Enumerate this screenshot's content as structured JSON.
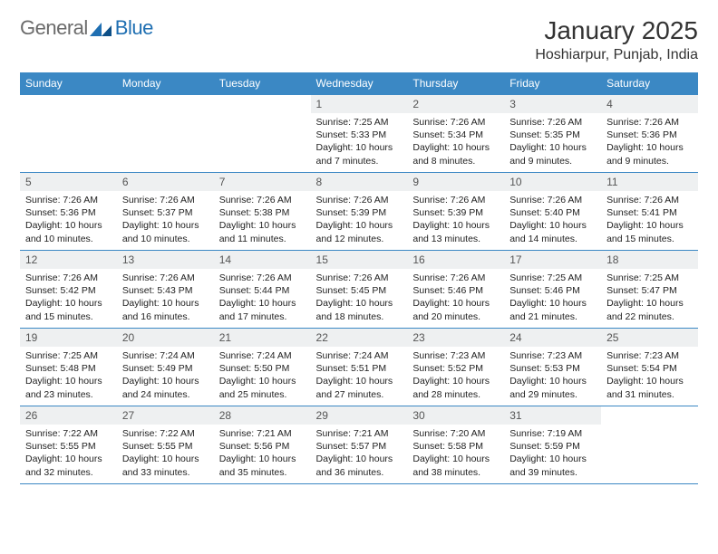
{
  "brand": {
    "name1": "General",
    "name2": "Blue"
  },
  "title": "January 2025",
  "location": "Hoshiarpur, Punjab, India",
  "colors": {
    "header_bg": "#3b88c4",
    "header_text": "#ffffff",
    "daynum_bg": "#eef0f1",
    "border": "#3b88c4",
    "logo_gray": "#6b6b6b",
    "logo_blue": "#1f6fb2"
  },
  "day_names": [
    "Sunday",
    "Monday",
    "Tuesday",
    "Wednesday",
    "Thursday",
    "Friday",
    "Saturday"
  ],
  "weeks": [
    [
      {
        "n": "",
        "sr": "",
        "ss": "",
        "dl": "",
        "empty": true
      },
      {
        "n": "",
        "sr": "",
        "ss": "",
        "dl": "",
        "empty": true
      },
      {
        "n": "",
        "sr": "",
        "ss": "",
        "dl": "",
        "empty": true
      },
      {
        "n": "1",
        "sr": "7:25 AM",
        "ss": "5:33 PM",
        "dl": "10 hours and 7 minutes."
      },
      {
        "n": "2",
        "sr": "7:26 AM",
        "ss": "5:34 PM",
        "dl": "10 hours and 8 minutes."
      },
      {
        "n": "3",
        "sr": "7:26 AM",
        "ss": "5:35 PM",
        "dl": "10 hours and 9 minutes."
      },
      {
        "n": "4",
        "sr": "7:26 AM",
        "ss": "5:36 PM",
        "dl": "10 hours and 9 minutes."
      }
    ],
    [
      {
        "n": "5",
        "sr": "7:26 AM",
        "ss": "5:36 PM",
        "dl": "10 hours and 10 minutes."
      },
      {
        "n": "6",
        "sr": "7:26 AM",
        "ss": "5:37 PM",
        "dl": "10 hours and 10 minutes."
      },
      {
        "n": "7",
        "sr": "7:26 AM",
        "ss": "5:38 PM",
        "dl": "10 hours and 11 minutes."
      },
      {
        "n": "8",
        "sr": "7:26 AM",
        "ss": "5:39 PM",
        "dl": "10 hours and 12 minutes."
      },
      {
        "n": "9",
        "sr": "7:26 AM",
        "ss": "5:39 PM",
        "dl": "10 hours and 13 minutes."
      },
      {
        "n": "10",
        "sr": "7:26 AM",
        "ss": "5:40 PM",
        "dl": "10 hours and 14 minutes."
      },
      {
        "n": "11",
        "sr": "7:26 AM",
        "ss": "5:41 PM",
        "dl": "10 hours and 15 minutes."
      }
    ],
    [
      {
        "n": "12",
        "sr": "7:26 AM",
        "ss": "5:42 PM",
        "dl": "10 hours and 15 minutes."
      },
      {
        "n": "13",
        "sr": "7:26 AM",
        "ss": "5:43 PM",
        "dl": "10 hours and 16 minutes."
      },
      {
        "n": "14",
        "sr": "7:26 AM",
        "ss": "5:44 PM",
        "dl": "10 hours and 17 minutes."
      },
      {
        "n": "15",
        "sr": "7:26 AM",
        "ss": "5:45 PM",
        "dl": "10 hours and 18 minutes."
      },
      {
        "n": "16",
        "sr": "7:26 AM",
        "ss": "5:46 PM",
        "dl": "10 hours and 20 minutes."
      },
      {
        "n": "17",
        "sr": "7:25 AM",
        "ss": "5:46 PM",
        "dl": "10 hours and 21 minutes."
      },
      {
        "n": "18",
        "sr": "7:25 AM",
        "ss": "5:47 PM",
        "dl": "10 hours and 22 minutes."
      }
    ],
    [
      {
        "n": "19",
        "sr": "7:25 AM",
        "ss": "5:48 PM",
        "dl": "10 hours and 23 minutes."
      },
      {
        "n": "20",
        "sr": "7:24 AM",
        "ss": "5:49 PM",
        "dl": "10 hours and 24 minutes."
      },
      {
        "n": "21",
        "sr": "7:24 AM",
        "ss": "5:50 PM",
        "dl": "10 hours and 25 minutes."
      },
      {
        "n": "22",
        "sr": "7:24 AM",
        "ss": "5:51 PM",
        "dl": "10 hours and 27 minutes."
      },
      {
        "n": "23",
        "sr": "7:23 AM",
        "ss": "5:52 PM",
        "dl": "10 hours and 28 minutes."
      },
      {
        "n": "24",
        "sr": "7:23 AM",
        "ss": "5:53 PM",
        "dl": "10 hours and 29 minutes."
      },
      {
        "n": "25",
        "sr": "7:23 AM",
        "ss": "5:54 PM",
        "dl": "10 hours and 31 minutes."
      }
    ],
    [
      {
        "n": "26",
        "sr": "7:22 AM",
        "ss": "5:55 PM",
        "dl": "10 hours and 32 minutes."
      },
      {
        "n": "27",
        "sr": "7:22 AM",
        "ss": "5:55 PM",
        "dl": "10 hours and 33 minutes."
      },
      {
        "n": "28",
        "sr": "7:21 AM",
        "ss": "5:56 PM",
        "dl": "10 hours and 35 minutes."
      },
      {
        "n": "29",
        "sr": "7:21 AM",
        "ss": "5:57 PM",
        "dl": "10 hours and 36 minutes."
      },
      {
        "n": "30",
        "sr": "7:20 AM",
        "ss": "5:58 PM",
        "dl": "10 hours and 38 minutes."
      },
      {
        "n": "31",
        "sr": "7:19 AM",
        "ss": "5:59 PM",
        "dl": "10 hours and 39 minutes."
      },
      {
        "n": "",
        "sr": "",
        "ss": "",
        "dl": "",
        "empty": true
      }
    ]
  ],
  "labels": {
    "sunrise": "Sunrise:",
    "sunset": "Sunset:",
    "daylight": "Daylight:"
  }
}
